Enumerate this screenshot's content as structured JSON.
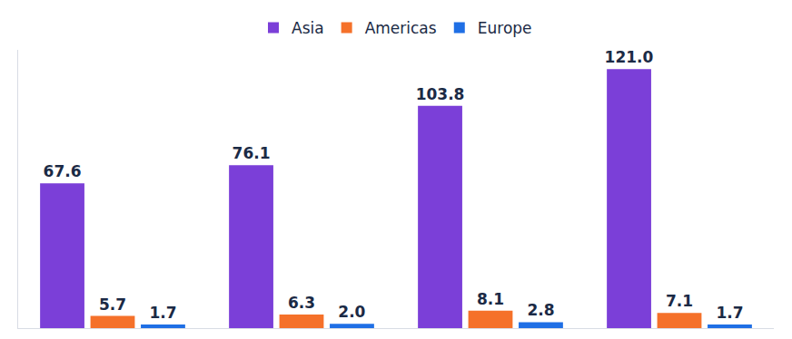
{
  "chart_data": {
    "type": "bar",
    "categories": [
      null,
      null,
      null,
      null
    ],
    "series": [
      {
        "name": "Asia",
        "color": "#7b3fd8",
        "values": [
          67.6,
          76.1,
          103.8,
          121.0
        ],
        "value_labels": [
          "67.6",
          "76.1",
          "103.8",
          "121.0"
        ]
      },
      {
        "name": "Americas",
        "color": "#f5712a",
        "values": [
          5.7,
          6.3,
          8.1,
          7.1
        ],
        "value_labels": [
          "5.7",
          "6.3",
          "8.1",
          "7.1"
        ]
      },
      {
        "name": "Europe",
        "color": "#1f6fe5",
        "values": [
          1.7,
          2.0,
          2.8,
          1.7
        ],
        "value_labels": [
          "1.7",
          "2.0",
          "2.8",
          "1.7"
        ]
      }
    ],
    "ylim": [
      0,
      130
    ],
    "data_labels": true,
    "tick_labels": false,
    "legend": "top",
    "grid": false
  }
}
